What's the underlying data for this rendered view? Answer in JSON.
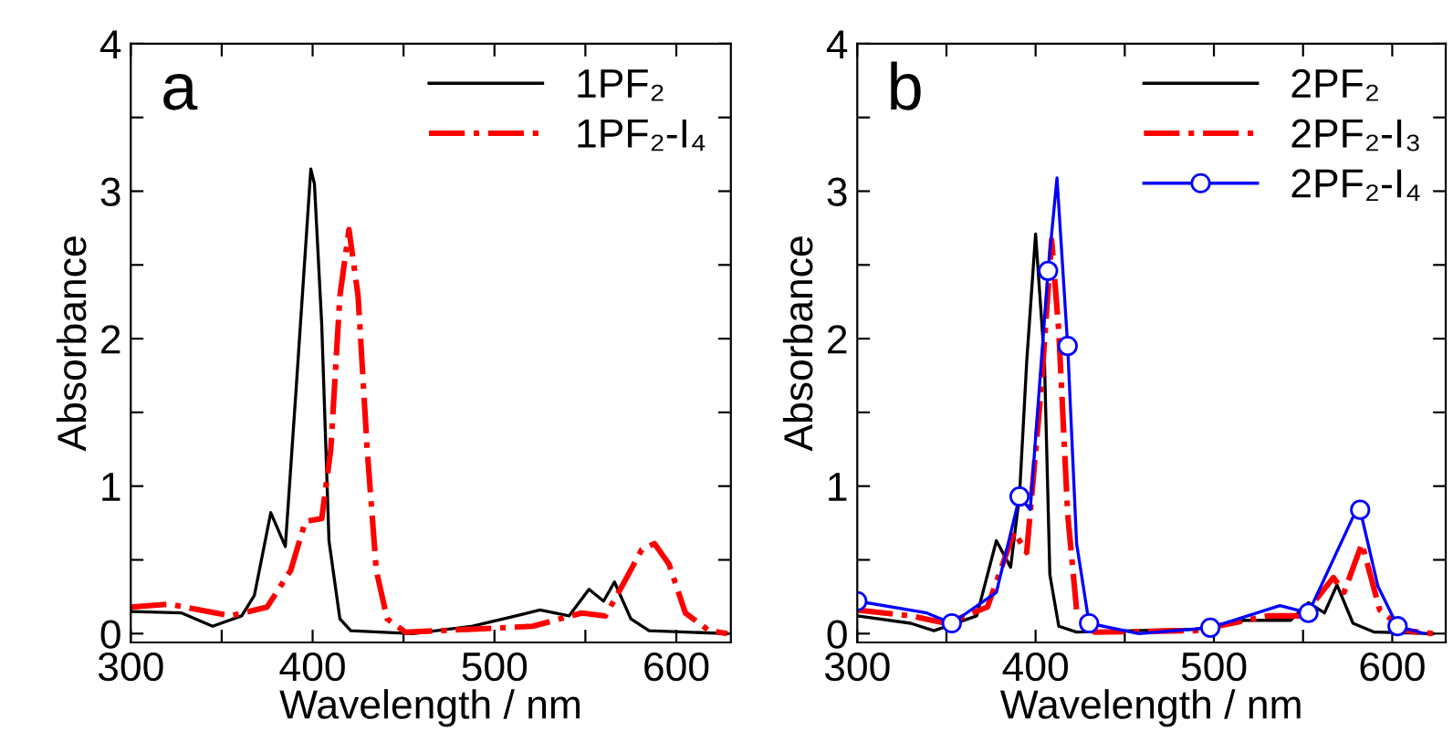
{
  "chart_data": [
    {
      "type": "line",
      "xlabel": "Wavelength / nm",
      "ylabel": "Absorbance",
      "annotations": [
        "a"
      ],
      "legend": "top right",
      "grid": false,
      "xlim": [
        300,
        630
      ],
      "ylim": [
        -0.06,
        4
      ],
      "xticks": [
        300,
        {
          "value": 350,
          "label": null
        },
        400,
        {
          "value": 450,
          "label": null
        },
        500,
        {
          "value": 550,
          "label": null
        },
        600
      ],
      "yticks": [
        0,
        {
          "value": 0.5,
          "label": null
        },
        1,
        {
          "value": 1.5,
          "label": null
        },
        2,
        {
          "value": 2.5,
          "label": null
        },
        3,
        {
          "value": 3.5,
          "label": null
        },
        4
      ],
      "series": [
        {
          "name": "1PF₂",
          "color": "#000000",
          "line_style": "solid",
          "x": [
            301,
            328,
            345,
            361,
            368,
            377,
            385,
            391,
            399,
            401,
            405,
            409,
            415,
            421,
            455,
            488,
            515,
            525,
            541,
            552,
            560,
            566,
            575,
            585,
            628
          ],
          "values": [
            0.15,
            0.14,
            0.05,
            0.12,
            0.26,
            0.82,
            0.59,
            1.67,
            3.15,
            3.05,
            2.1,
            0.63,
            0.1,
            0.02,
            0,
            0.05,
            0.13,
            0.16,
            0.12,
            0.3,
            0.22,
            0.35,
            0.1,
            0.02,
            0
          ]
        },
        {
          "name": "1PF₂-I₄",
          "color": "#ff0000",
          "line_style": "dashdot",
          "x": [
            300,
            321,
            355,
            375,
            388,
            396,
            405,
            410,
            415,
            420,
            425,
            430,
            435,
            441,
            451,
            488,
            521,
            548,
            561,
            571,
            581,
            588,
            596,
            605,
            618,
            628
          ],
          "values": [
            0.18,
            0.2,
            0.12,
            0.18,
            0.43,
            0.76,
            0.78,
            1.25,
            2.29,
            2.74,
            2.29,
            1.25,
            0.43,
            0.1,
            0.01,
            0.03,
            0.05,
            0.14,
            0.12,
            0.34,
            0.57,
            0.61,
            0.47,
            0.14,
            0.02,
            0
          ]
        }
      ]
    },
    {
      "type": "line",
      "xlabel": "Wavelength / nm",
      "ylabel": "Absorbance",
      "annotations": [
        "b"
      ],
      "legend": "top right",
      "grid": false,
      "xlim": [
        300,
        630
      ],
      "ylim": [
        -0.06,
        4
      ],
      "xticks": [
        300,
        {
          "value": 350,
          "label": null
        },
        400,
        {
          "value": 450,
          "label": null
        },
        500,
        {
          "value": 550,
          "label": null
        },
        600
      ],
      "yticks": [
        0,
        {
          "value": 0.5,
          "label": null
        },
        1,
        {
          "value": 1.5,
          "label": null
        },
        2,
        {
          "value": 2.5,
          "label": null
        },
        3,
        {
          "value": 3.5,
          "label": null
        },
        4
      ],
      "series": [
        {
          "name": "2PF₂",
          "color": "#000000",
          "line_style": "solid",
          "x": [
            300,
            330,
            343,
            367,
            378,
            386,
            391,
            395,
            400,
            405,
            408,
            413,
            423,
            490,
            517,
            543,
            553,
            562,
            569,
            578,
            590,
            623
          ],
          "values": [
            0.12,
            0.07,
            0.02,
            0.12,
            0.63,
            0.45,
            0.94,
            1.84,
            2.71,
            1.84,
            0.4,
            0.05,
            0.01,
            0.03,
            0.09,
            0.09,
            0.21,
            0.14,
            0.33,
            0.07,
            0.01,
            0
          ]
        },
        {
          "name": "2PF₂-I₃",
          "color": "#ff0000",
          "line_style": "dashdot",
          "x": [
            300,
            330,
            350,
            373,
            388,
            395,
            403,
            409,
            413,
            418,
            423,
            433,
            490,
            530,
            550,
            567,
            573,
            583,
            593,
            607,
            623
          ],
          "values": [
            0.16,
            0.12,
            0.07,
            0.18,
            0.69,
            0.55,
            1.64,
            2.67,
            2.05,
            0.81,
            0.16,
            0.01,
            0.02,
            0.12,
            0.12,
            0.38,
            0.28,
            0.61,
            0.16,
            0.02,
            0
          ]
        },
        {
          "name": "2PF₂-I₄",
          "color": "#0000ff",
          "line_style": "solid",
          "marker": "circle",
          "x": [
            300,
            339,
            353,
            378,
            391,
            397,
            407,
            412,
            418,
            423,
            430,
            458,
            498,
            537,
            553,
            578,
            582,
            592,
            603,
            618
          ],
          "values": [
            0.22,
            0.14,
            0.07,
            0.28,
            0.93,
            0.84,
            2.46,
            3.09,
            1.95,
            0.61,
            0.07,
            0,
            0.04,
            0.19,
            0.14,
            0.79,
            0.84,
            0.32,
            0.05,
            0
          ]
        }
      ]
    }
  ]
}
